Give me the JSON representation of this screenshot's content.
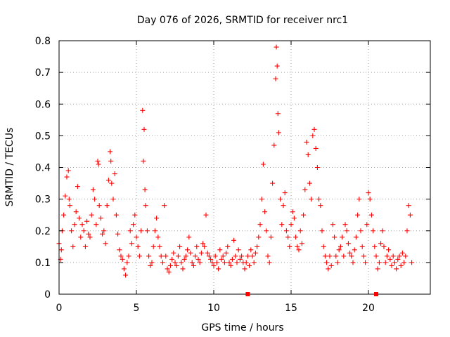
{
  "chart_data": {
    "type": "scatter",
    "title": "Day 076 of 2026, SRMTID for receiver nrc1",
    "xlabel": "GPS time / hours",
    "ylabel": "SRMTID / TECUs",
    "xlim": [
      0,
      24
    ],
    "ylim": [
      0,
      0.8
    ],
    "xticks": [
      0,
      5,
      10,
      15,
      20
    ],
    "xtick_labels": [
      "0",
      "5",
      "10",
      "15",
      "20"
    ],
    "yticks": [
      0,
      0.1,
      0.2,
      0.3,
      0.4,
      0.5,
      0.6,
      0.7,
      0.8
    ],
    "ytick_labels": [
      "0",
      "0.1",
      "0.2",
      "0.3",
      "0.4",
      "0.5",
      "0.6",
      "0.7",
      "0.8"
    ],
    "grid": true,
    "marker": "plus",
    "color": "#ff0000",
    "series": [
      {
        "name": "SRMTID",
        "x": [
          0.0,
          0.1,
          0.15,
          0.2,
          0.3,
          0.4,
          0.5,
          0.6,
          0.65,
          0.7,
          0.8,
          0.9,
          1.0,
          1.1,
          1.2,
          1.3,
          1.4,
          1.5,
          1.6,
          1.7,
          1.8,
          1.9,
          2.0,
          2.1,
          2.2,
          2.3,
          2.4,
          2.5,
          2.55,
          2.6,
          2.7,
          2.8,
          2.9,
          3.0,
          3.1,
          3.2,
          3.3,
          3.35,
          3.4,
          3.5,
          3.6,
          3.7,
          3.8,
          3.9,
          4.0,
          4.1,
          4.2,
          4.3,
          4.4,
          4.5,
          4.6,
          4.7,
          4.8,
          4.9,
          5.0,
          5.1,
          5.2,
          5.3,
          5.4,
          5.45,
          5.5,
          5.55,
          5.6,
          5.7,
          5.8,
          5.9,
          6.0,
          6.1,
          6.2,
          6.3,
          6.4,
          6.5,
          6.6,
          6.7,
          6.8,
          6.9,
          7.0,
          7.1,
          7.2,
          7.3,
          7.4,
          7.5,
          7.6,
          7.7,
          7.8,
          7.9,
          8.0,
          8.1,
          8.2,
          8.3,
          8.4,
          8.5,
          8.6,
          8.7,
          8.8,
          8.9,
          9.0,
          9.1,
          9.2,
          9.3,
          9.4,
          9.5,
          9.6,
          9.7,
          9.8,
          9.9,
          10.0,
          10.1,
          10.2,
          10.3,
          10.4,
          10.5,
          10.6,
          10.7,
          10.8,
          10.9,
          11.0,
          11.1,
          11.2,
          11.3,
          11.4,
          11.5,
          11.6,
          11.7,
          11.8,
          11.9,
          12.0,
          12.1,
          12.2,
          12.3,
          12.4,
          12.5,
          12.6,
          12.7,
          12.8,
          12.9,
          13.0,
          13.1,
          13.2,
          13.3,
          13.4,
          13.5,
          13.6,
          13.7,
          13.8,
          13.9,
          14.0,
          14.05,
          14.1,
          14.15,
          14.2,
          14.3,
          14.4,
          14.5,
          14.6,
          14.7,
          14.8,
          14.9,
          15.0,
          15.1,
          15.2,
          15.3,
          15.4,
          15.5,
          15.6,
          15.7,
          15.8,
          15.9,
          16.0,
          16.1,
          16.2,
          16.3,
          16.4,
          16.5,
          16.6,
          16.7,
          16.8,
          16.9,
          17.0,
          17.1,
          17.2,
          17.3,
          17.4,
          17.5,
          17.6,
          17.7,
          17.8,
          17.9,
          18.0,
          18.1,
          18.2,
          18.3,
          18.4,
          18.5,
          18.6,
          18.7,
          18.8,
          18.9,
          19.0,
          19.1,
          19.2,
          19.3,
          19.4,
          19.5,
          19.6,
          19.7,
          19.8,
          19.9,
          20.0,
          20.1,
          20.2,
          20.3,
          20.4,
          20.5,
          20.6,
          20.7,
          20.8,
          20.9,
          21.0,
          21.1,
          21.2,
          21.3,
          21.4,
          21.5,
          21.6,
          21.7,
          21.8,
          21.9,
          22.0,
          22.1,
          22.2,
          22.3,
          22.4,
          22.5,
          22.6,
          22.7,
          22.8
        ],
        "y": [
          0.16,
          0.11,
          0.14,
          0.2,
          0.25,
          0.31,
          0.37,
          0.39,
          0.3,
          0.28,
          0.2,
          0.15,
          0.22,
          0.26,
          0.34,
          0.24,
          0.18,
          0.22,
          0.2,
          0.15,
          0.23,
          0.19,
          0.18,
          0.25,
          0.33,
          0.3,
          0.22,
          0.42,
          0.41,
          0.28,
          0.24,
          0.19,
          0.2,
          0.16,
          0.28,
          0.36,
          0.45,
          0.42,
          0.35,
          0.3,
          0.38,
          0.25,
          0.19,
          0.14,
          0.12,
          0.11,
          0.08,
          0.06,
          0.1,
          0.12,
          0.2,
          0.16,
          0.22,
          0.25,
          0.18,
          0.15,
          0.12,
          0.2,
          0.58,
          0.42,
          0.52,
          0.33,
          0.28,
          0.2,
          0.12,
          0.09,
          0.1,
          0.15,
          0.2,
          0.24,
          0.18,
          0.15,
          0.12,
          0.1,
          0.28,
          0.12,
          0.08,
          0.07,
          0.09,
          0.11,
          0.13,
          0.1,
          0.09,
          0.12,
          0.15,
          0.1,
          0.08,
          0.11,
          0.12,
          0.14,
          0.18,
          0.13,
          0.1,
          0.09,
          0.12,
          0.15,
          0.11,
          0.1,
          0.13,
          0.16,
          0.15,
          0.25,
          0.13,
          0.12,
          0.11,
          0.1,
          0.09,
          0.12,
          0.1,
          0.08,
          0.14,
          0.11,
          0.12,
          0.1,
          0.13,
          0.15,
          0.1,
          0.09,
          0.11,
          0.17,
          0.12,
          0.1,
          0.14,
          0.11,
          0.12,
          0.1,
          0.08,
          0.1,
          0.12,
          0.09,
          0.14,
          0.12,
          0.1,
          0.13,
          0.15,
          0.18,
          0.22,
          0.3,
          0.41,
          0.26,
          0.2,
          0.12,
          0.1,
          0.18,
          0.35,
          0.47,
          0.68,
          0.78,
          0.72,
          0.57,
          0.51,
          0.3,
          0.22,
          0.28,
          0.32,
          0.2,
          0.18,
          0.15,
          0.22,
          0.26,
          0.24,
          0.18,
          0.15,
          0.14,
          0.2,
          0.16,
          0.25,
          0.33,
          0.48,
          0.44,
          0.35,
          0.3,
          0.5,
          0.52,
          0.46,
          0.4,
          0.3,
          0.28,
          0.2,
          0.15,
          0.12,
          0.1,
          0.08,
          0.12,
          0.09,
          0.22,
          0.18,
          0.12,
          0.1,
          0.14,
          0.15,
          0.18,
          0.12,
          0.22,
          0.2,
          0.16,
          0.13,
          0.12,
          0.1,
          0.14,
          0.18,
          0.25,
          0.3,
          0.2,
          0.15,
          0.12,
          0.1,
          0.22,
          0.32,
          0.3,
          0.25,
          0.2,
          0.15,
          0.12,
          0.08,
          0.1,
          0.16,
          0.2,
          0.15,
          0.1,
          0.12,
          0.14,
          0.11,
          0.09,
          0.12,
          0.1,
          0.08,
          0.11,
          0.12,
          0.09,
          0.13,
          0.1,
          0.12,
          0.2,
          0.28,
          0.25,
          0.1
        ]
      }
    ],
    "markers_on_axis": [
      {
        "x": 12.2,
        "y": 0
      },
      {
        "x": 20.5,
        "y": 0
      }
    ]
  }
}
